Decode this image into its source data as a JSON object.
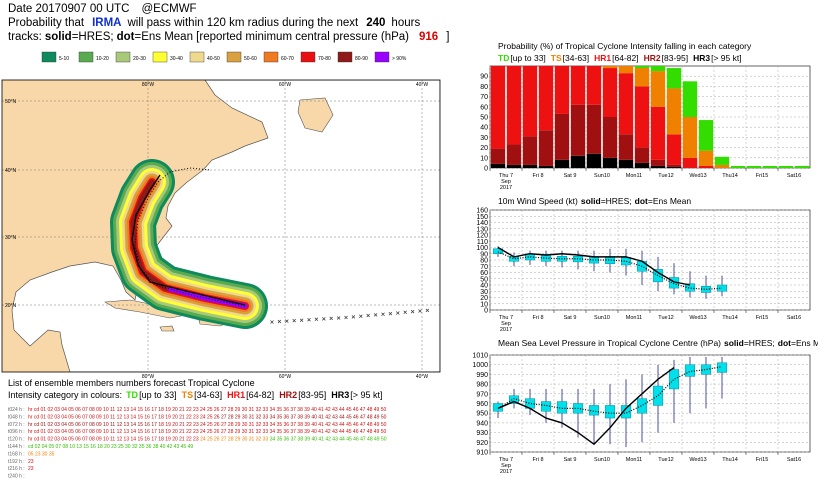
{
  "header": {
    "line1": [
      "Date 20170907 00 UTC",
      "@ECMWF"
    ],
    "line2": [
      "Probability that",
      "IRMA",
      "will pass within 120 km radius during the next",
      "240",
      "hours"
    ],
    "line3": [
      "tracks:",
      "solid",
      "=HRES;",
      "dot",
      "=Ens Mean [reported minimum central pressure (hPa)",
      "916",
      "]"
    ]
  },
  "legend": [
    {
      "label": "5-10",
      "color": "#0e8a5c"
    },
    {
      "label": "10-20",
      "color": "#5aaa50"
    },
    {
      "label": "20-30",
      "color": "#a9c97a"
    },
    {
      "label": "30-40",
      "color": "#ffff33"
    },
    {
      "label": "40-50",
      "color": "#efd98e"
    },
    {
      "label": "50-60",
      "color": "#d9a040"
    },
    {
      "label": "60-70",
      "color": "#f07a22"
    },
    {
      "label": "70-80",
      "color": "#e81010"
    },
    {
      "label": "80-90",
      "color": "#8e1a1a"
    },
    {
      "label": "> 90%",
      "color": "#9900ff"
    }
  ],
  "map": {
    "lat_labels": [
      "50°N",
      "40°N",
      "30°N",
      "20°N"
    ],
    "lon_labels": [
      "80°W",
      "60°W",
      "40°W"
    ]
  },
  "chart_data": [
    {
      "type": "bar",
      "title": [
        {
          "text": "Probability (%) of Tropical Cyclone Intensity falling in each category"
        }
      ],
      "categories": [
        "Thu 7",
        null,
        "Fri 8",
        null,
        "Sat 9",
        null,
        "Sun10",
        null,
        "Mon11",
        null,
        "Tue12",
        null,
        "Wed13",
        null,
        "Thu14",
        null,
        "Fri15",
        null,
        "Sat16",
        null
      ],
      "x_sublabels": [
        "Sep",
        "2017"
      ],
      "highlight_category": 6,
      "highlight_color": "#e00000",
      "ylim": [
        0,
        100
      ],
      "yticks": [
        0,
        10,
        20,
        30,
        40,
        50,
        60,
        70,
        80,
        90
      ],
      "series": [
        {
          "name": "HR3",
          "range": "[> 95 kt]",
          "color": "#000000",
          "values": [
            4,
            3,
            3,
            2,
            8,
            12,
            14,
            10,
            8,
            5,
            2,
            1,
            0,
            0,
            0,
            0,
            0,
            0,
            0,
            0
          ]
        },
        {
          "name": "HR2",
          "range": "[83-95]",
          "color": "#a01010",
          "values": [
            15,
            20,
            28,
            35,
            45,
            50,
            48,
            40,
            25,
            15,
            6,
            2,
            0,
            0,
            0,
            0,
            0,
            0,
            0,
            0
          ]
        },
        {
          "name": "HR1",
          "range": "[64-82]",
          "color": "#ee1111",
          "values": [
            81,
            77,
            69,
            63,
            47,
            38,
            38,
            48,
            60,
            60,
            52,
            30,
            10,
            2,
            0,
            0,
            0,
            0,
            0,
            0
          ]
        },
        {
          "name": "TS",
          "range": "[34-63]",
          "color": "#f08000",
          "values": [
            0,
            0,
            0,
            0,
            0,
            0,
            0,
            2,
            7,
            18,
            35,
            45,
            40,
            15,
            3,
            0,
            0,
            0,
            0,
            0
          ]
        },
        {
          "name": "TD",
          "range": "[up to 33]",
          "color": "#33dd00",
          "values": [
            0,
            0,
            0,
            0,
            0,
            0,
            0,
            0,
            0,
            2,
            5,
            20,
            35,
            30,
            8,
            2,
            2,
            2,
            2,
            2
          ]
        }
      ]
    },
    {
      "type": "box",
      "title": [
        {
          "text": "10m Wind Speed (kt)"
        },
        {
          "text": "solid",
          "bold": true
        },
        {
          "text": "=HRES;"
        },
        {
          "text": "dot",
          "bold": true
        },
        {
          "text": "=Ens Mean"
        }
      ],
      "categories": [
        "Thu 7",
        null,
        "Fri 8",
        null,
        "Sat 9",
        null,
        "Sun10",
        null,
        "Mon11",
        null,
        "Tue12",
        null,
        "Wed13",
        null,
        "Thu14",
        null,
        "Fri15",
        null,
        "Sat16",
        null
      ],
      "x_sublabels": [
        "Sep",
        "2017"
      ],
      "highlight_category": 6,
      "highlight_color": "#e00000",
      "ylim": [
        0,
        160
      ],
      "yticks": [
        0,
        10,
        20,
        30,
        40,
        50,
        60,
        70,
        80,
        90,
        100,
        110,
        120,
        130,
        140,
        150,
        160
      ],
      "series": [
        {
          "style": "solid",
          "color": "#000000",
          "values": [
            100,
            85,
            90,
            88,
            90,
            88,
            85,
            85,
            85,
            78,
            60,
            45,
            40,
            null,
            null,
            null,
            null,
            null,
            null,
            null
          ]
        },
        {
          "style": "dot",
          "color": "#000000",
          "values": [
            93,
            82,
            85,
            83,
            82,
            82,
            80,
            80,
            78,
            70,
            55,
            42,
            35,
            33,
            35,
            null,
            null,
            null,
            null,
            null
          ]
        }
      ],
      "box": {
        "color": "#00e0ea",
        "whisker_color": "#4a50a0",
        "q1": [
          90,
          78,
          80,
          78,
          78,
          77,
          75,
          74,
          72,
          62,
          45,
          35,
          30,
          28,
          30,
          null,
          null,
          null,
          null,
          null
        ],
        "q3": [
          98,
          86,
          90,
          88,
          86,
          86,
          85,
          85,
          84,
          78,
          65,
          52,
          42,
          38,
          40,
          null,
          null,
          null,
          null,
          null
        ],
        "min": [
          85,
          70,
          72,
          70,
          68,
          65,
          62,
          60,
          55,
          40,
          30,
          25,
          20,
          18,
          22,
          null,
          null,
          null,
          null,
          null
        ],
        "max": [
          102,
          92,
          95,
          95,
          95,
          95,
          95,
          98,
          98,
          95,
          85,
          75,
          62,
          55,
          55,
          null,
          null,
          null,
          null,
          null
        ]
      }
    },
    {
      "type": "box",
      "title": [
        {
          "text": "Mean Sea Level Pressure in Tropical Cyclone Centre (hPa)"
        },
        {
          "text": "solid",
          "bold": true
        },
        {
          "text": "=HRES;"
        },
        {
          "text": "dot",
          "bold": true
        },
        {
          "text": "=Ens Mean"
        }
      ],
      "categories": [
        "Thu 7",
        null,
        "Fri 8",
        null,
        "Sat 9",
        null,
        "Sun10",
        null,
        "Mon11",
        null,
        "Tue12",
        null,
        "Wed13",
        null,
        "Thu14",
        null,
        "Fri15",
        null,
        "Sat16",
        null
      ],
      "x_sublabels": [
        "Sep",
        "2017"
      ],
      "highlight_category": 6,
      "highlight_color": "#e00000",
      "ylim": [
        910,
        1010
      ],
      "yticks": [
        910,
        920,
        930,
        940,
        950,
        960,
        970,
        980,
        990,
        1000,
        1010
      ],
      "series": [
        {
          "style": "solid",
          "color": "#000000",
          "values": [
            955,
            962,
            955,
            945,
            940,
            930,
            918,
            935,
            955,
            970,
            985,
            997,
            null,
            null,
            null,
            null,
            null,
            null,
            null,
            null
          ]
        },
        {
          "style": "dot",
          "color": "#000000",
          "values": [
            955,
            965,
            960,
            958,
            955,
            955,
            952,
            950,
            950,
            958,
            968,
            985,
            993,
            995,
            998,
            null,
            null,
            null,
            null,
            null
          ]
        }
      ],
      "box": {
        "color": "#00e0ea",
        "whisker_color": "#4a50a0",
        "q1": [
          952,
          960,
          955,
          952,
          950,
          950,
          948,
          945,
          945,
          950,
          958,
          975,
          988,
          990,
          992,
          null,
          null,
          null,
          null,
          null
        ],
        "q3": [
          960,
          968,
          965,
          962,
          962,
          960,
          958,
          958,
          958,
          965,
          978,
          995,
          1000,
          1000,
          1002,
          null,
          null,
          null,
          null,
          null
        ],
        "min": [
          945,
          955,
          948,
          940,
          935,
          925,
          918,
          918,
          915,
          920,
          930,
          940,
          950,
          955,
          965,
          null,
          null,
          null,
          null,
          null
        ],
        "max": [
          962,
          975,
          975,
          975,
          975,
          975,
          975,
          980,
          985,
          990,
          1000,
          1005,
          1008,
          1008,
          1008,
          null,
          null,
          null,
          null,
          null
        ]
      }
    }
  ],
  "list": {
    "title": "List of ensemble members numbers forecast Tropical Cyclone",
    "subtitle": "Intensity category in colours:",
    "rows": [
      {
        "label": "t024 h :",
        "segments": [
          {
            "text": "hr cd 01 02 03 04 05 06 07 08 09 10 11 12 13 14 15 16 17 18 19 20 21 22 23 24 25 26 27 28 29 30 31 32 33 34 35 36 37 38 39 40 41 42 43 44 45 46 47 48 49 50",
            "color": "#d01010"
          }
        ]
      },
      {
        "label": "t048 h :",
        "segments": [
          {
            "text": "hr cd 01 02 03 04 05 06 07 08 09 10 11 12 13 14 15 16 17 18 19 20 21 22 23 24 25",
            "color": "#d01010"
          },
          {
            "text": "26 27 28 29 30 31 32 33 34 35 36 37 38 39 40 41 42 43 44 45 46 47 48 49 50",
            "color": "#a01010"
          }
        ]
      },
      {
        "label": "t072 h :",
        "segments": [
          {
            "text": "hr cd 01 02 03 04 05 06 07 08 09 10 11 12 13 14 15 16 17",
            "color": "#a01010"
          },
          {
            "text": "18 19 20 21 22 23 24 25 26 27 28 29 30 31 32 33 34 35 36 37 38 39 40 41 42 43 44 45 46 47 48 49 50",
            "color": "#d01010"
          }
        ]
      },
      {
        "label": "t096 h :",
        "segments": [
          {
            "text": "hr cd 01 02 03 04 05 06 07 08 09 10 11 12 13 14 15 16 17 18 19 20 21 22 23 24 25 26 27 28 29 30 31 32 33 34 35 36 37 38 39 40 41 42 43 44 45 46 47 48 49 50",
            "color": "#d01010"
          }
        ]
      },
      {
        "label": "t120 h :",
        "segments": [
          {
            "text": "hr cd 01 02 03 04 05 06 07 08 09 10 11 12 13 14 15 16 17 18 19 20 21 22 23",
            "color": "#d01010"
          },
          {
            "text": "24 25 26 27 28 29 30 31 32 33",
            "color": "#f08000"
          },
          {
            "text": "34 35 36 37 38 39 40 41 42 43 44 45 46 47 48 49 50",
            "color": "#33bb00"
          }
        ]
      },
      {
        "label": "t144 h :",
        "segments": [
          {
            "text": "cd 02 04 05 07 08 10 13 15 16 18 20 23 25 30 32 35 36 38 40 42 43 45 49",
            "color": "#33bb00"
          }
        ]
      },
      {
        "label": "t168 h :",
        "segments": [
          {
            "text": "05 23 30 35",
            "color": "#f08000"
          }
        ]
      },
      {
        "label": "t192 h :",
        "segments": [
          {
            "text": "23",
            "color": "#d01010"
          }
        ]
      },
      {
        "label": "t216 h :",
        "segments": [
          {
            "text": "23",
            "color": "#d01010"
          }
        ]
      },
      {
        "label": "t240 h :",
        "segments": []
      }
    ]
  }
}
